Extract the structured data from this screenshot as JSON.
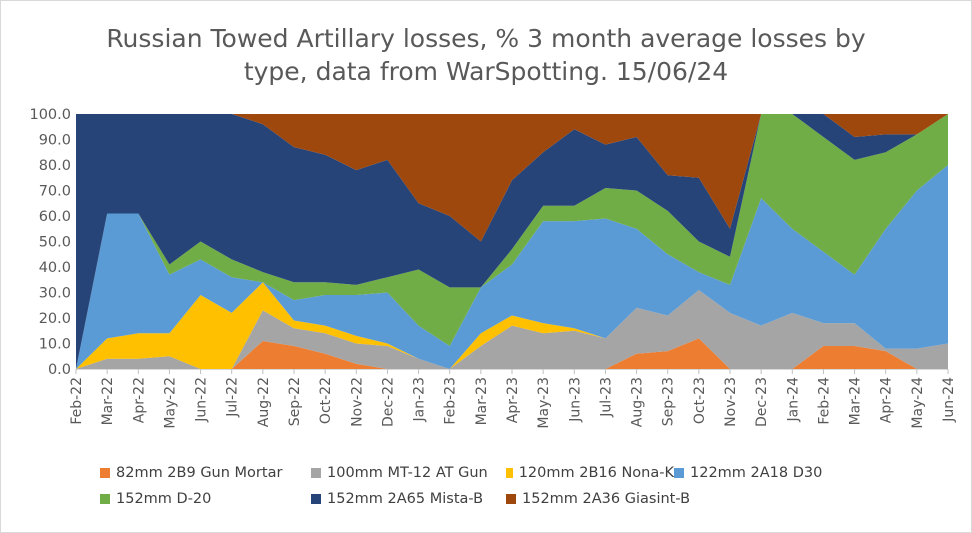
{
  "chart_data": {
    "type": "area",
    "stacked": true,
    "title_lines": [
      "Russian Towed Artillary losses, % 3 month average losses by",
      "type, data from WarSpotting. 15/06/24"
    ],
    "xlabel": "",
    "ylabel": "",
    "ylim": [
      0,
      100
    ],
    "yticks": [
      "0.0",
      "10.0",
      "20.0",
      "30.0",
      "40.0",
      "50.0",
      "60.0",
      "70.0",
      "80.0",
      "90.0",
      "100.0"
    ],
    "grid": false,
    "legend_position": "bottom",
    "categories": [
      "Feb-22",
      "Mar-22",
      "Apr-22",
      "May-22",
      "Jun-22",
      "Jul-22",
      "Aug-22",
      "Sep-22",
      "Oct-22",
      "Nov-22",
      "Dec-22",
      "Jan-23",
      "Feb-23",
      "Mar-23",
      "Apr-23",
      "May-23",
      "Jun-23",
      "Jul-23",
      "Aug-23",
      "Sep-23",
      "Oct-23",
      "Nov-23",
      "Dec-23",
      "Jan-24",
      "Feb-24",
      "Mar-24",
      "Apr-24",
      "May-24",
      "Jun-24"
    ],
    "series": [
      {
        "name": "82mm 2B9 Gun Mortar",
        "color": "#ED7D31",
        "values": [
          0,
          0,
          0,
          0,
          0,
          0,
          11,
          9,
          6,
          2,
          0,
          0,
          0,
          0,
          0,
          0,
          0,
          0,
          6,
          7,
          12,
          0,
          0,
          0,
          9,
          9,
          7,
          0,
          0
        ]
      },
      {
        "name": "100mm MT-12 AT Gun",
        "color": "#A5A5A5",
        "values": [
          0,
          4,
          4,
          5,
          0,
          0,
          12,
          7,
          8,
          8,
          9,
          4,
          0,
          9,
          17,
          14,
          15,
          12,
          18,
          14,
          19,
          22,
          17,
          22,
          9,
          9,
          1,
          8,
          10
        ]
      },
      {
        "name": "120mm 2B16 Nona-K",
        "color": "#FFC000",
        "values": [
          0,
          8,
          10,
          9,
          29,
          22,
          11,
          3,
          3,
          3,
          1,
          0,
          0,
          5,
          4,
          4,
          1,
          0,
          0,
          0,
          0,
          0,
          0,
          0,
          0,
          0,
          0,
          0,
          0
        ]
      },
      {
        "name": "122mm 2A18 D30",
        "color": "#5B9BD5",
        "values": [
          0,
          49,
          47,
          23,
          14,
          14,
          0,
          8,
          12,
          16,
          20,
          13,
          9,
          18,
          20,
          40,
          42,
          47,
          31,
          24,
          7,
          11,
          50,
          33,
          28,
          19,
          47,
          62,
          70
        ]
      },
      {
        "name": "152mm D-20",
        "color": "#70AD47",
        "values": [
          0,
          0,
          0,
          4,
          7,
          7,
          4,
          7,
          5,
          4,
          6,
          22,
          23,
          0,
          6,
          6,
          6,
          12,
          15,
          17,
          12,
          11,
          33,
          45,
          45,
          45,
          30,
          22,
          20
        ]
      },
      {
        "name": "152mm 2A65 Mista-B",
        "color": "#264478",
        "values": [
          100,
          39,
          39,
          60,
          50,
          57,
          58,
          53,
          50,
          45,
          46,
          26,
          28,
          18,
          27,
          21,
          30,
          17,
          21,
          14,
          25,
          11,
          0,
          0,
          9,
          9,
          7,
          0,
          0
        ]
      },
      {
        "name": "152mm 2A36 Giasint-B",
        "color": "#9E480E",
        "values": [
          0,
          0,
          0,
          0,
          0,
          0,
          4,
          13,
          16,
          22,
          18,
          35,
          40,
          50,
          26,
          15,
          6,
          12,
          9,
          24,
          25,
          45,
          0,
          0,
          0,
          9,
          8,
          8,
          0
        ]
      }
    ]
  }
}
